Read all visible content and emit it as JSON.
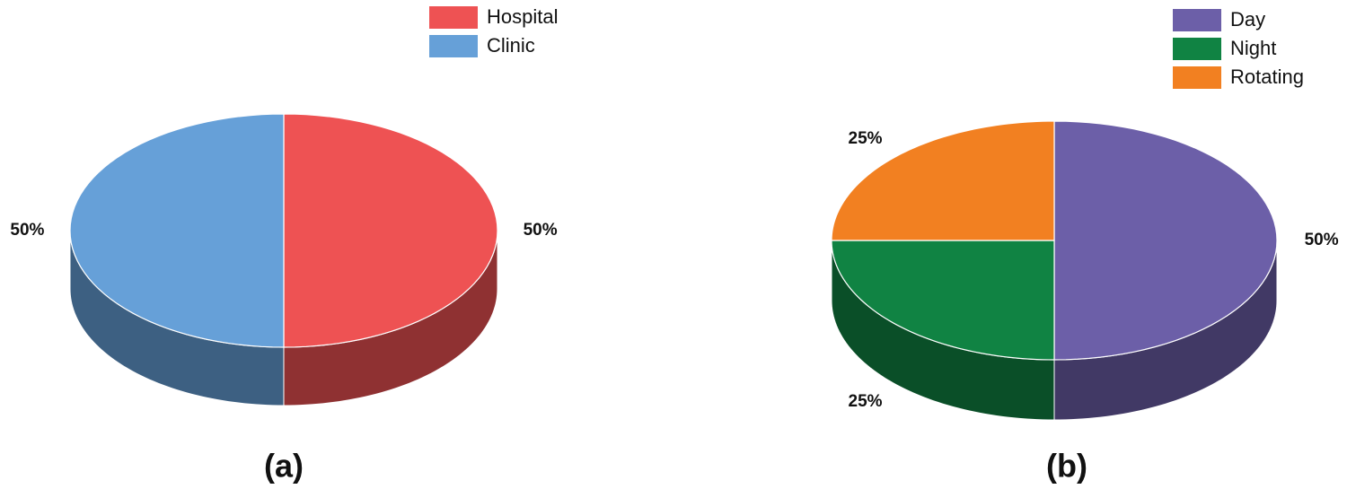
{
  "chart_data": [
    {
      "type": "pie",
      "title": "(a)",
      "categories": [
        "Hospital",
        "Clinic"
      ],
      "values": [
        50,
        50
      ],
      "value_labels": [
        "50%",
        "50%"
      ],
      "colors": [
        "#ee5253",
        "#66a0d8"
      ],
      "legend": "upper right"
    },
    {
      "type": "pie",
      "title": "(b)",
      "categories": [
        "Day",
        "Night",
        "Rotating"
      ],
      "values": [
        50,
        25,
        25
      ],
      "value_labels": [
        "50%",
        "25%",
        "25%"
      ],
      "colors": [
        "#6c5fa8",
        "#108343",
        "#f28021"
      ],
      "legend": "upper right"
    }
  ]
}
